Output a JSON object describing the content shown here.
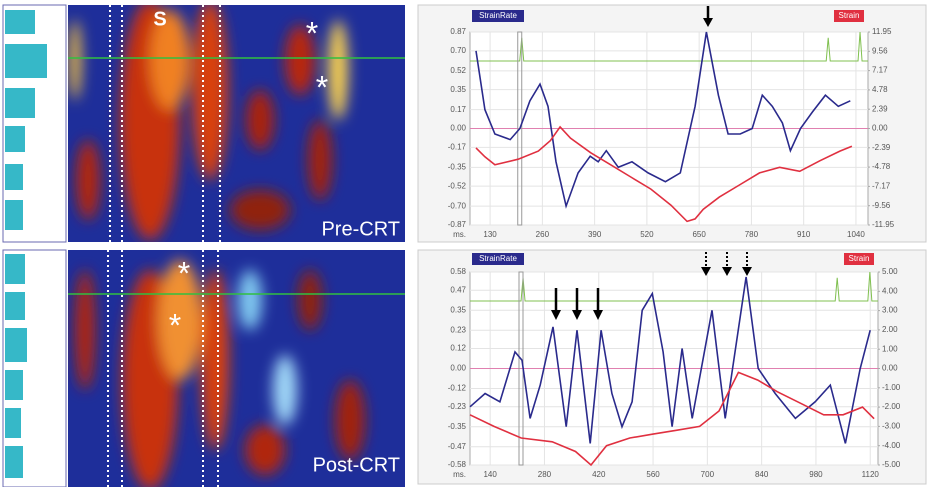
{
  "panels": [
    {
      "label": "Pre-CRT",
      "annotations": [
        "S",
        "*",
        "*"
      ]
    },
    {
      "label": "Post-CRT",
      "annotations": [
        "*",
        "*"
      ]
    }
  ],
  "chart_data": [
    {
      "type": "line",
      "x_label": "ms.",
      "xlim": [
        80,
        1070
      ],
      "xticks": [
        130,
        260,
        390,
        520,
        650,
        780,
        910,
        1040
      ],
      "ylim": [
        -0.87,
        0.87
      ],
      "yticks": [
        {
          "value": 0.87,
          "label": "0.87"
        },
        {
          "value": 0.7,
          "label": "0.70"
        },
        {
          "value": 0.52,
          "label": "0.52"
        },
        {
          "value": 0.35,
          "label": "0.35"
        },
        {
          "value": 0.17,
          "label": "0.17"
        },
        {
          "value": 0,
          "label": "0.00"
        },
        {
          "value": -0.17,
          "label": "-0.17"
        },
        {
          "value": -0.35,
          "label": "-0.35"
        },
        {
          "value": -0.52,
          "label": "-0.52"
        },
        {
          "value": -0.7,
          "label": "-0.70"
        },
        {
          "value": -0.87,
          "label": "-0.87"
        }
      ],
      "y2lim": [
        -11.95,
        11.95
      ],
      "y2ticks": [
        {
          "value": 11.95,
          "label": "11.95"
        },
        {
          "value": 9.56,
          "label": "9.56"
        },
        {
          "value": 7.17,
          "label": "7.17"
        },
        {
          "value": 4.78,
          "label": "4.78"
        },
        {
          "value": 2.39,
          "label": "2.39"
        },
        {
          "value": 0,
          "label": "0.00"
        },
        {
          "value": -2.39,
          "label": "-2.39"
        },
        {
          "value": -4.78,
          "label": "-4.78"
        },
        {
          "value": -7.17,
          "label": "-7.17"
        },
        {
          "value": -9.56,
          "label": "-9.56"
        },
        {
          "value": -11.95,
          "label": "-11.95"
        }
      ],
      "grid": true,
      "series": [
        {
          "name": "StrainRate",
          "color": "#2a2a8c",
          "x": [
            95,
            117,
            142,
            180,
            204,
            229,
            254,
            274,
            294,
            319,
            349,
            379,
            399,
            419,
            449,
            483,
            523,
            566,
            603,
            640,
            668,
            698,
            722,
            752,
            782,
            807,
            832,
            857,
            877,
            902,
            932,
            964,
            996,
            1026
          ],
          "values": [
            0.7,
            0.17,
            -0.05,
            -0.1,
            0.0,
            0.25,
            0.4,
            0.2,
            -0.3,
            -0.7,
            -0.4,
            -0.25,
            -0.3,
            -0.2,
            -0.35,
            -0.3,
            -0.4,
            -0.48,
            -0.4,
            0.2,
            0.87,
            0.3,
            -0.05,
            -0.05,
            0.0,
            0.3,
            0.2,
            0.05,
            -0.2,
            0.0,
            0.15,
            0.3,
            0.2,
            0.25
          ]
        },
        {
          "name": "Strain",
          "color": "#e03040",
          "axis": "y2",
          "x": [
            95,
            117,
            142,
            200,
            250,
            280,
            304,
            330,
            380,
            430,
            480,
            530,
            580,
            620,
            640,
            660,
            700,
            750,
            800,
            850,
            900,
            950,
            1000,
            1030
          ],
          "values": [
            -2.4,
            -3.5,
            -4.5,
            -3.8,
            -2.8,
            -1.5,
            0.2,
            -1.2,
            -3.0,
            -4.5,
            -6.0,
            -7.5,
            -9.5,
            -11.5,
            -11.2,
            -10.0,
            -8.5,
            -7.0,
            -5.5,
            -4.8,
            -5.3,
            -4.0,
            -2.8,
            -2.2
          ]
        }
      ]
    },
    {
      "type": "line",
      "x_label": "ms.",
      "xlim": [
        88,
        1140
      ],
      "xticks": [
        140,
        280,
        420,
        560,
        700,
        840,
        980,
        1120
      ],
      "ylim": [
        -0.58,
        0.58
      ],
      "yticks": [
        {
          "value": 0.58,
          "label": "0.58"
        },
        {
          "value": 0.47,
          "label": "0.47"
        },
        {
          "value": 0.35,
          "label": "0.35"
        },
        {
          "value": 0.23,
          "label": "0.23"
        },
        {
          "value": 0.12,
          "label": "0.12"
        },
        {
          "value": 0,
          "label": "0.00"
        },
        {
          "value": -0.12,
          "label": "-0.12"
        },
        {
          "value": -0.23,
          "label": "-0.23"
        },
        {
          "value": -0.35,
          "label": "-0.35"
        },
        {
          "value": -0.47,
          "label": "-0.47"
        },
        {
          "value": -0.58,
          "label": "-0.58"
        }
      ],
      "y2lim": [
        -5,
        5
      ],
      "y2ticks": [
        {
          "value": 5,
          "label": "5.00"
        },
        {
          "value": 4,
          "label": "4.00"
        },
        {
          "value": 3,
          "label": "3.00"
        },
        {
          "value": 2,
          "label": "2.00"
        },
        {
          "value": 1,
          "label": "1.00"
        },
        {
          "value": 0,
          "label": "0.00"
        },
        {
          "value": -1,
          "label": "-1.00"
        },
        {
          "value": -2,
          "label": "-2.00"
        },
        {
          "value": -3,
          "label": "-3.00"
        },
        {
          "value": -4,
          "label": "-4.00"
        },
        {
          "value": -5,
          "label": "-5.00"
        }
      ],
      "grid": true,
      "series": [
        {
          "name": "StrainRate",
          "color": "#2a2a8c",
          "x": [
            88,
            127,
            165,
            204,
            222,
            243,
            269,
            302,
            336,
            364,
            398,
            426,
            454,
            480,
            506,
            532,
            558,
            586,
            609,
            635,
            661,
            712,
            746,
            800,
            831,
            875,
            927,
            978,
            1017,
            1056,
            1094,
            1120
          ],
          "values": [
            -0.23,
            -0.15,
            -0.2,
            0.1,
            0.05,
            -0.3,
            -0.1,
            0.25,
            -0.35,
            0.23,
            -0.45,
            0.23,
            -0.15,
            -0.35,
            -0.2,
            0.35,
            0.45,
            0.1,
            -0.35,
            0.12,
            -0.3,
            0.35,
            -0.3,
            0.55,
            0.0,
            -0.15,
            -0.3,
            -0.2,
            -0.1,
            -0.45,
            0.0,
            0.23
          ]
        },
        {
          "name": "Strain",
          "color": "#e03040",
          "axis": "y2",
          "x": [
            88,
            150,
            220,
            300,
            360,
            400,
            440,
            500,
            560,
            620,
            680,
            730,
            780,
            830,
            880,
            940,
            1000,
            1050,
            1100,
            1130
          ],
          "values": [
            -2.4,
            -3.0,
            -3.6,
            -3.8,
            -4.3,
            -5.0,
            -4.0,
            -3.6,
            -3.4,
            -3.2,
            -3.0,
            -2.2,
            -0.2,
            -0.6,
            -1.2,
            -1.8,
            -2.4,
            -2.4,
            -2.0,
            -2.6
          ]
        }
      ]
    }
  ]
}
